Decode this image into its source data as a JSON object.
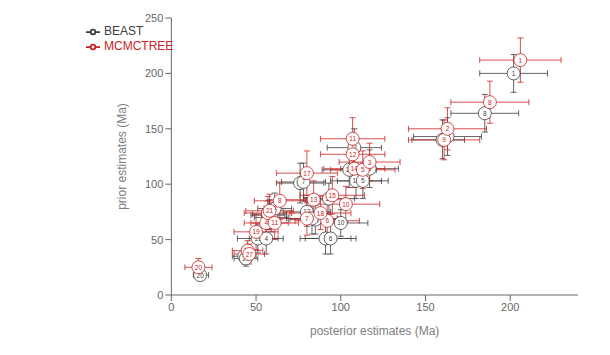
{
  "chart_data": {
    "type": "scatter",
    "xlabel": "posterior estimates (Ma)",
    "ylabel": "prior estimates (Ma)",
    "xlim": [
      0,
      240
    ],
    "ylim": [
      0,
      250
    ],
    "xticks": [
      0,
      50,
      100,
      150,
      200
    ],
    "yticks": [
      0,
      50,
      100,
      150,
      200,
      250
    ],
    "legend": "upper left",
    "series": [
      {
        "name": "BEAST",
        "color": "#3d3d3d",
        "points": [
          {
            "node": "20",
            "x": 17,
            "x_lo": 13,
            "x_hi": 22,
            "y": 18,
            "y_lo": 13,
            "y_hi": 23
          },
          {
            "node": "22",
            "x": 43,
            "x_lo": 36,
            "x_hi": 50,
            "y": 35,
            "y_lo": 28,
            "y_hi": 42
          },
          {
            "node": "27",
            "x": 44,
            "x_lo": 37,
            "x_hi": 51,
            "y": 33,
            "y_lo": 26,
            "y_hi": 40
          },
          {
            "node": "19",
            "x": 51,
            "x_lo": 39,
            "x_hi": 63,
            "y": 51,
            "y_lo": 38,
            "y_hi": 64
          },
          {
            "node": "4",
            "x": 56,
            "x_lo": 46,
            "x_hi": 66,
            "y": 51,
            "y_lo": 37,
            "y_hi": 65
          },
          {
            "node": "16",
            "x": 57,
            "x_lo": 47,
            "x_hi": 67,
            "y": 72,
            "y_lo": 59,
            "y_hi": 85
          },
          {
            "node": "21",
            "x": 58,
            "x_lo": 48,
            "x_hi": 68,
            "y": 73,
            "y_lo": 60,
            "y_hi": 86
          },
          {
            "node": "11",
            "x": 59,
            "x_lo": 49,
            "x_hi": 69,
            "y": 70,
            "y_lo": 57,
            "y_hi": 83
          },
          {
            "node": "8",
            "x": 61,
            "x_lo": 51,
            "x_hi": 71,
            "y": 78,
            "y_lo": 64,
            "y_hi": 92
          },
          {
            "node": "17",
            "x": 76,
            "x_lo": 62,
            "x_hi": 90,
            "y": 101,
            "y_lo": 83,
            "y_hi": 119
          },
          {
            "node": "7",
            "x": 78,
            "x_lo": 65,
            "x_hi": 91,
            "y": 102,
            "y_lo": 85,
            "y_hi": 119
          },
          {
            "node": "7",
            "x": 91,
            "x_lo": 76,
            "x_hi": 106,
            "y": 51,
            "y_lo": 37,
            "y_hi": 65
          },
          {
            "node": "6",
            "x": 94,
            "x_lo": 79,
            "x_hi": 109,
            "y": 51,
            "y_lo": 37,
            "y_hi": 65
          },
          {
            "node": "13",
            "x": 80,
            "x_lo": 66,
            "x_hi": 94,
            "y": 75,
            "y_lo": 62,
            "y_hi": 88
          },
          {
            "node": "18",
            "x": 85,
            "x_lo": 70,
            "x_hi": 100,
            "y": 68,
            "y_lo": 55,
            "y_hi": 81
          },
          {
            "node": "4",
            "x": 83,
            "x_lo": 68,
            "x_hi": 98,
            "y": 69,
            "y_lo": 55,
            "y_hi": 83
          },
          {
            "node": "15",
            "x": 93,
            "x_lo": 78,
            "x_hi": 108,
            "y": 87,
            "y_lo": 73,
            "y_hi": 101
          },
          {
            "node": "10",
            "x": 100,
            "x_lo": 84,
            "x_hi": 116,
            "y": 65,
            "y_lo": 53,
            "y_hi": 77
          },
          {
            "node": "14",
            "x": 109,
            "x_lo": 94,
            "x_hi": 124,
            "y": 103,
            "y_lo": 87,
            "y_hi": 119
          },
          {
            "node": "5",
            "x": 113,
            "x_lo": 98,
            "x_hi": 128,
            "y": 103,
            "y_lo": 87,
            "y_hi": 119
          },
          {
            "node": "12",
            "x": 105,
            "x_lo": 89,
            "x_hi": 121,
            "y": 113,
            "y_lo": 97,
            "y_hi": 129
          },
          {
            "node": "11",
            "x": 108,
            "x_lo": 92,
            "x_hi": 124,
            "y": 133,
            "y_lo": 116,
            "y_hi": 150
          },
          {
            "node": "3",
            "x": 117,
            "x_lo": 100,
            "x_hi": 134,
            "y": 114,
            "y_lo": 97,
            "y_hi": 131
          },
          {
            "node": "9",
            "x": 160,
            "x_lo": 142,
            "x_hi": 173,
            "y": 140,
            "y_lo": 123,
            "y_hi": 158
          },
          {
            "node": "2",
            "x": 163,
            "x_lo": 143,
            "x_hi": 183,
            "y": 143,
            "y_lo": 126,
            "y_hi": 160
          },
          {
            "node": "8",
            "x": 185,
            "x_lo": 165,
            "x_hi": 205,
            "y": 164,
            "y_lo": 147,
            "y_hi": 181
          },
          {
            "node": "1",
            "x": 202,
            "x_lo": 182,
            "x_hi": 222,
            "y": 200,
            "y_lo": 183,
            "y_hi": 217
          }
        ]
      },
      {
        "name": "MCMCTREE",
        "color": "#cc2222",
        "points": [
          {
            "node": "20",
            "x": 16,
            "x_lo": 8,
            "x_hi": 24,
            "y": 25,
            "y_lo": 17,
            "y_hi": 33
          },
          {
            "node": "22",
            "x": 45,
            "x_lo": 36,
            "x_hi": 54,
            "y": 40,
            "y_lo": 31,
            "y_hi": 49
          },
          {
            "node": "27",
            "x": 46,
            "x_lo": 37,
            "x_hi": 55,
            "y": 37,
            "y_lo": 28,
            "y_hi": 46
          },
          {
            "node": "19",
            "x": 50,
            "x_lo": 37,
            "x_hi": 63,
            "y": 57,
            "y_lo": 41,
            "y_hi": 73
          },
          {
            "node": "4",
            "x": 56,
            "x_lo": 43,
            "x_hi": 69,
            "y": 65,
            "y_lo": 50,
            "y_hi": 80
          },
          {
            "node": "16",
            "x": 57,
            "x_lo": 43,
            "x_hi": 71,
            "y": 74,
            "y_lo": 59,
            "y_hi": 89
          },
          {
            "node": "21",
            "x": 58,
            "x_lo": 44,
            "x_hi": 72,
            "y": 76,
            "y_lo": 61,
            "y_hi": 91
          },
          {
            "node": "11",
            "x": 61,
            "x_lo": 47,
            "x_hi": 75,
            "y": 65,
            "y_lo": 50,
            "y_hi": 80
          },
          {
            "node": "8",
            "x": 64,
            "x_lo": 49,
            "x_hi": 79,
            "y": 85,
            "y_lo": 68,
            "y_hi": 102
          },
          {
            "node": "17",
            "x": 80,
            "x_lo": 62,
            "x_hi": 98,
            "y": 110,
            "y_lo": 90,
            "y_hi": 130
          },
          {
            "node": "7",
            "x": 80,
            "x_lo": 62,
            "x_hi": 98,
            "y": 69,
            "y_lo": 54,
            "y_hi": 84
          },
          {
            "node": "6",
            "x": 92,
            "x_lo": 73,
            "x_hi": 111,
            "y": 67,
            "y_lo": 52,
            "y_hi": 82
          },
          {
            "node": "13",
            "x": 84,
            "x_lo": 66,
            "x_hi": 102,
            "y": 86,
            "y_lo": 69,
            "y_hi": 103
          },
          {
            "node": "18",
            "x": 88,
            "x_lo": 70,
            "x_hi": 106,
            "y": 74,
            "y_lo": 59,
            "y_hi": 89
          },
          {
            "node": "15",
            "x": 95,
            "x_lo": 76,
            "x_hi": 114,
            "y": 90,
            "y_lo": 73,
            "y_hi": 107
          },
          {
            "node": "10",
            "x": 103,
            "x_lo": 83,
            "x_hi": 123,
            "y": 82,
            "y_lo": 66,
            "y_hi": 98
          },
          {
            "node": "14",
            "x": 108,
            "x_lo": 90,
            "x_hi": 126,
            "y": 114,
            "y_lo": 97,
            "y_hi": 131
          },
          {
            "node": "5",
            "x": 113,
            "x_lo": 94,
            "x_hi": 132,
            "y": 113,
            "y_lo": 96,
            "y_hi": 130
          },
          {
            "node": "12",
            "x": 107,
            "x_lo": 88,
            "x_hi": 126,
            "y": 127,
            "y_lo": 109,
            "y_hi": 145
          },
          {
            "node": "11",
            "x": 107,
            "x_lo": 88,
            "x_hi": 126,
            "y": 141,
            "y_lo": 122,
            "y_hi": 160
          },
          {
            "node": "3",
            "x": 117,
            "x_lo": 99,
            "x_hi": 135,
            "y": 120,
            "y_lo": 103,
            "y_hi": 137
          },
          {
            "node": "9",
            "x": 161,
            "x_lo": 140,
            "x_hi": 182,
            "y": 140,
            "y_lo": 122,
            "y_hi": 158
          },
          {
            "node": "2",
            "x": 163,
            "x_lo": 140,
            "x_hi": 186,
            "y": 150,
            "y_lo": 131,
            "y_hi": 169
          },
          {
            "node": "8",
            "x": 188,
            "x_lo": 165,
            "x_hi": 211,
            "y": 174,
            "y_lo": 155,
            "y_hi": 193
          },
          {
            "node": "1",
            "x": 206,
            "x_lo": 182,
            "x_hi": 230,
            "y": 212,
            "y_lo": 192,
            "y_hi": 232
          }
        ]
      }
    ]
  }
}
